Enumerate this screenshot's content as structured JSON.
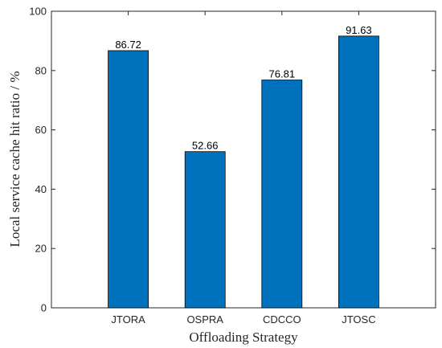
{
  "chart_data": {
    "type": "bar",
    "categories": [
      "JTORA",
      "OSPRA",
      "CDCCO",
      "JTOSC"
    ],
    "values": [
      86.72,
      52.66,
      76.81,
      91.63
    ],
    "data_labels": [
      "86.72",
      "52.66",
      "76.81",
      "91.63"
    ],
    "title": "",
    "xlabel": "Offloading Strategy",
    "ylabel": "Local service cache hit ratio / %",
    "ylim": [
      0,
      100
    ],
    "yticks": [
      0,
      20,
      40,
      60,
      80,
      100
    ],
    "bar_color": "#0072BD",
    "grid": false,
    "legend": "none"
  }
}
